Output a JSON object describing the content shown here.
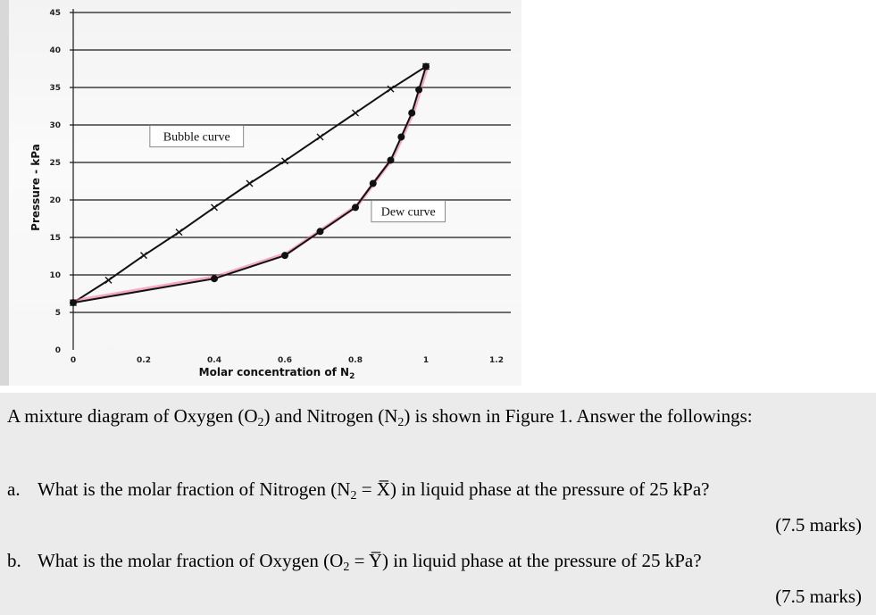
{
  "chart_data": {
    "type": "line",
    "xlabel": "Molar concentration of N",
    "xlabel_subscript": "2",
    "ylabel": "Pressure - kPa",
    "xlim": [
      0,
      1.2
    ],
    "ylim": [
      0,
      45
    ],
    "x_ticks": [
      "0",
      "0.2",
      "0.4",
      "0.6",
      "0.8",
      "1",
      "1.2"
    ],
    "y_ticks": [
      "0",
      "5",
      "10",
      "15",
      "20",
      "25",
      "30",
      "35",
      "40",
      "45"
    ],
    "grid": true,
    "series": [
      {
        "marker": "x",
        "color": "#111111",
        "x": [
          0,
          0.1,
          0.2,
          0.3,
          0.4,
          0.5,
          0.6,
          0.7,
          0.8,
          0.9,
          1.0
        ],
        "y": [
          6.3,
          9.3,
          12.6,
          15.7,
          19.0,
          22.2,
          25.2,
          28.4,
          31.6,
          34.8,
          37.8
        ]
      },
      {
        "marker": "dot",
        "color": "#111111",
        "x": [
          0,
          0.4,
          0.6,
          0.7,
          0.8,
          0.85,
          0.9,
          0.93,
          0.96,
          0.98,
          1.0
        ],
        "y": [
          6.3,
          9.5,
          12.6,
          15.8,
          19.0,
          22.2,
          25.3,
          28.4,
          31.6,
          34.7,
          37.8
        ]
      }
    ],
    "annotations": [
      {
        "text": "Bubble curve",
        "x": 0.35,
        "y": 28.5
      },
      {
        "text": "Dew curve",
        "x": 0.95,
        "y": 18.5
      }
    ]
  },
  "question": {
    "intro_1": "A mixture diagram of Oxygen (O",
    "intro_sub_1": "2",
    "intro_2": ") and Nitrogen (N",
    "intro_sub_2": "2",
    "intro_3": ") is shown in Figure 1. Answer the followings:",
    "a_label": "a.",
    "a_1": "What is the molar fraction of Nitrogen (N",
    "a_sub": "2",
    "a_2": " = X̅) in liquid phase at the pressure of 25 kPa?",
    "a_marks": "(7.5 marks)",
    "b_label": "b.",
    "b_1": "What is the molar fraction of Oxygen (O",
    "b_sub": "2",
    "b_2": " = Y̅) in liquid phase at the pressure of 25 kPa?",
    "b_marks": "(7.5 marks)"
  }
}
